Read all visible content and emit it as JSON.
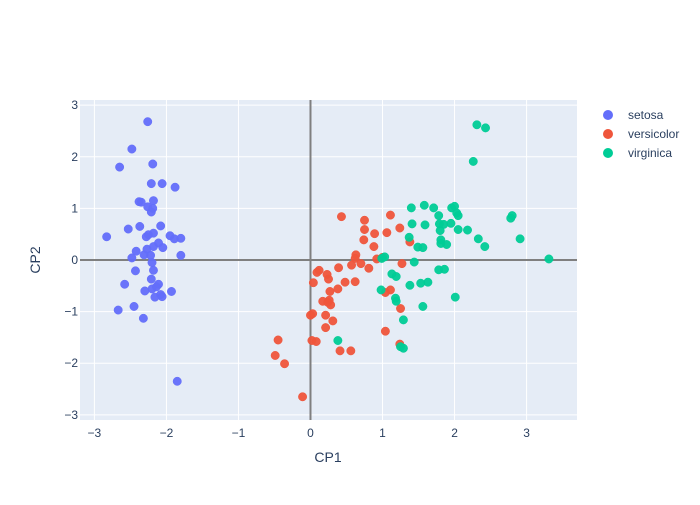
{
  "chart_data": {
    "type": "scatter",
    "title": "",
    "xlabel": "CP1",
    "ylabel": "CP2",
    "xlim": [
      -3.2,
      3.7
    ],
    "ylim": [
      -3.1,
      3.1
    ],
    "xticks": [
      -3,
      -2,
      -1,
      0,
      1,
      2,
      3
    ],
    "yticks": [
      -3,
      -2,
      -1,
      0,
      1,
      2,
      3
    ],
    "grid": true,
    "zero_lines": true,
    "legend_position": "right",
    "background": "#e5ecf6",
    "series": [
      {
        "name": "setosa",
        "color": "#636efa",
        "points": [
          [
            -2.26,
            2.68
          ],
          [
            -2.48,
            2.15
          ],
          [
            -2.65,
            1.8
          ],
          [
            -2.19,
            1.86
          ],
          [
            -2.06,
            1.48
          ],
          [
            -2.21,
            1.48
          ],
          [
            -1.88,
            1.41
          ],
          [
            -2.38,
            1.13
          ],
          [
            -2.35,
            1.12
          ],
          [
            -2.18,
            1.15
          ],
          [
            -2.26,
            1.03
          ],
          [
            -2.21,
            0.93
          ],
          [
            -2.19,
            1.0
          ],
          [
            -2.08,
            0.66
          ],
          [
            -2.37,
            0.65
          ],
          [
            -2.53,
            0.6
          ],
          [
            -2.25,
            0.49
          ],
          [
            -2.28,
            0.45
          ],
          [
            -2.18,
            0.52
          ],
          [
            -1.95,
            0.47
          ],
          [
            -1.89,
            0.41
          ],
          [
            -1.8,
            0.42
          ],
          [
            -2.83,
            0.45
          ],
          [
            -2.11,
            0.33
          ],
          [
            -2.18,
            0.26
          ],
          [
            -2.27,
            0.21
          ],
          [
            -2.05,
            0.24
          ],
          [
            -2.42,
            0.17
          ],
          [
            -2.31,
            0.1
          ],
          [
            -1.8,
            0.09
          ],
          [
            -2.22,
            0.09
          ],
          [
            -2.48,
            0.04
          ],
          [
            -2.2,
            -0.05
          ],
          [
            -2.18,
            -0.2
          ],
          [
            -2.43,
            -0.21
          ],
          [
            -2.21,
            -0.37
          ],
          [
            -2.58,
            -0.47
          ],
          [
            -2.11,
            -0.47
          ],
          [
            -2.14,
            -0.52
          ],
          [
            -2.2,
            -0.56
          ],
          [
            -2.3,
            -0.6
          ],
          [
            -1.93,
            -0.61
          ],
          [
            -2.08,
            -0.67
          ],
          [
            -2.06,
            -0.71
          ],
          [
            -2.16,
            -0.72
          ],
          [
            -2.45,
            -0.9
          ],
          [
            -2.67,
            -0.97
          ],
          [
            -2.32,
            -1.13
          ],
          [
            -1.85,
            -2.35
          ]
        ]
      },
      {
        "name": "versicolor",
        "color": "#ef553b",
        "points": [
          [
            0.43,
            0.84
          ],
          [
            0.75,
            0.77
          ],
          [
            1.11,
            0.87
          ],
          [
            0.75,
            0.59
          ],
          [
            0.89,
            0.51
          ],
          [
            1.24,
            0.62
          ],
          [
            0.74,
            0.39
          ],
          [
            0.88,
            0.26
          ],
          [
            1.06,
            0.53
          ],
          [
            1.38,
            0.35
          ],
          [
            0.92,
            0.02
          ],
          [
            0.63,
            0.1
          ],
          [
            0.62,
            0.03
          ],
          [
            0.57,
            -0.1
          ],
          [
            0.7,
            -0.07
          ],
          [
            1.0,
            0.05
          ],
          [
            0.81,
            -0.16
          ],
          [
            0.39,
            -0.15
          ],
          [
            0.12,
            -0.2
          ],
          [
            0.09,
            -0.24
          ],
          [
            0.23,
            -0.28
          ],
          [
            0.25,
            -0.37
          ],
          [
            0.48,
            -0.43
          ],
          [
            0.04,
            -0.44
          ],
          [
            1.27,
            -0.07
          ],
          [
            1.11,
            -0.58
          ],
          [
            0.62,
            -0.42
          ],
          [
            0.38,
            -0.56
          ],
          [
            0.27,
            -0.61
          ],
          [
            1.04,
            -0.63
          ],
          [
            0.17,
            -0.8
          ],
          [
            0.26,
            -0.78
          ],
          [
            0.24,
            -0.82
          ],
          [
            0.28,
            -0.87
          ],
          [
            1.25,
            -0.94
          ],
          [
            0.03,
            -1.04
          ],
          [
            0.0,
            -1.07
          ],
          [
            0.21,
            -1.07
          ],
          [
            0.31,
            -1.18
          ],
          [
            0.21,
            -1.31
          ],
          [
            0.02,
            -1.56
          ],
          [
            0.08,
            -1.58
          ],
          [
            1.04,
            -1.38
          ],
          [
            -0.45,
            -1.55
          ],
          [
            0.41,
            -1.76
          ],
          [
            0.56,
            -1.76
          ],
          [
            -0.49,
            -1.85
          ],
          [
            -0.36,
            -2.01
          ],
          [
            1.24,
            -1.63
          ],
          [
            -0.11,
            -2.65
          ]
        ]
      },
      {
        "name": "virginica",
        "color": "#00cc96",
        "points": [
          [
            2.31,
            2.62
          ],
          [
            2.43,
            2.56
          ],
          [
            2.26,
            1.91
          ],
          [
            1.4,
            1.01
          ],
          [
            1.58,
            1.06
          ],
          [
            1.71,
            1.01
          ],
          [
            1.96,
            1.01
          ],
          [
            2.0,
            1.04
          ],
          [
            1.78,
            0.86
          ],
          [
            2.03,
            0.91
          ],
          [
            2.05,
            0.86
          ],
          [
            2.8,
            0.86
          ],
          [
            2.78,
            0.81
          ],
          [
            2.18,
            0.58
          ],
          [
            1.41,
            0.7
          ],
          [
            1.59,
            0.68
          ],
          [
            1.79,
            0.7
          ],
          [
            1.85,
            0.69
          ],
          [
            1.95,
            0.71
          ],
          [
            1.8,
            0.57
          ],
          [
            2.05,
            0.59
          ],
          [
            2.33,
            0.41
          ],
          [
            2.91,
            0.41
          ],
          [
            1.37,
            0.44
          ],
          [
            1.81,
            0.39
          ],
          [
            1.81,
            0.32
          ],
          [
            1.89,
            0.3
          ],
          [
            2.42,
            0.26
          ],
          [
            1.49,
            0.25
          ],
          [
            1.56,
            0.24
          ],
          [
            0.99,
            0.03
          ],
          [
            1.03,
            0.06
          ],
          [
            1.44,
            -0.04
          ],
          [
            3.31,
            0.02
          ],
          [
            1.13,
            -0.27
          ],
          [
            1.19,
            -0.32
          ],
          [
            1.78,
            -0.19
          ],
          [
            1.86,
            -0.18
          ],
          [
            1.63,
            -0.43
          ],
          [
            1.53,
            -0.45
          ],
          [
            1.38,
            -0.49
          ],
          [
            0.98,
            -0.58
          ],
          [
            1.18,
            -0.74
          ],
          [
            1.19,
            -0.8
          ],
          [
            2.01,
            -0.72
          ],
          [
            1.56,
            -0.9
          ],
          [
            1.29,
            -1.16
          ],
          [
            0.38,
            -1.56
          ],
          [
            1.25,
            -1.68
          ],
          [
            1.29,
            -1.71
          ]
        ]
      }
    ]
  }
}
